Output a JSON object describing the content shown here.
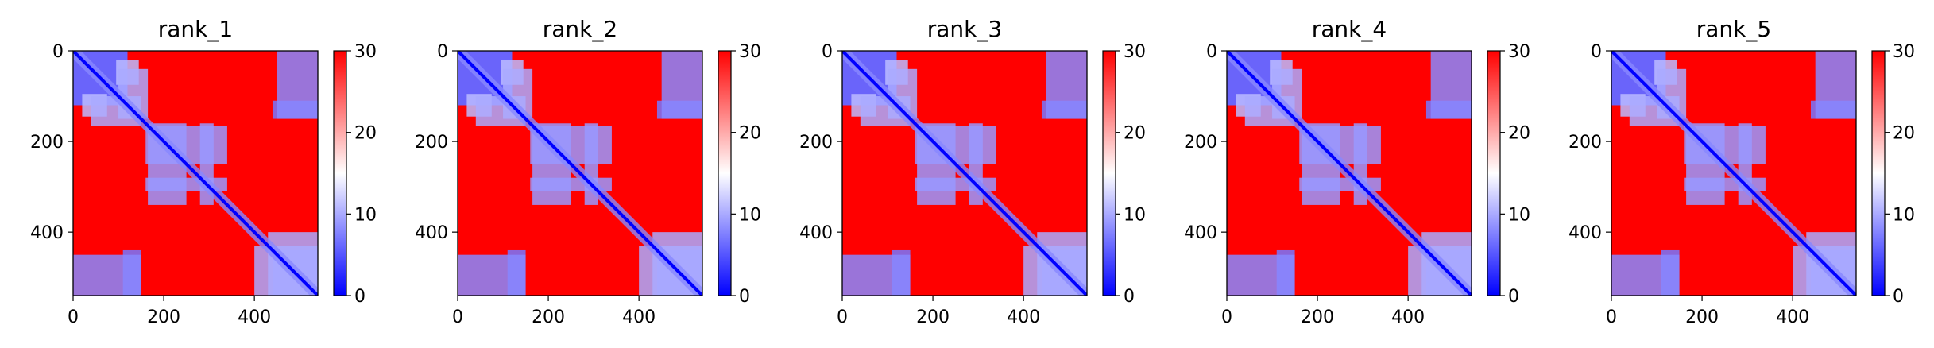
{
  "chart_data": [
    {
      "type": "heatmap",
      "title": "rank_1",
      "xlim": [
        0,
        540
      ],
      "ylim": [
        540,
        0
      ],
      "x_ticks": [
        0,
        200,
        400
      ],
      "y_ticks": [
        0,
        200,
        400
      ],
      "colorbar": {
        "min": 0,
        "max": 30,
        "ticks": [
          0,
          10,
          20,
          30
        ],
        "colormap": [
          "#0000ff",
          "#ffffff",
          "#ff0000"
        ]
      },
      "blocks": [
        {
          "x": [
            0,
            120
          ],
          "y": [
            0,
            120
          ],
          "v": 6
        },
        {
          "x": [
            20,
            75
          ],
          "y": [
            95,
            145
          ],
          "v": 11
        },
        {
          "x": [
            100,
            165
          ],
          "y": [
            40,
            150
          ],
          "v": 10
        },
        {
          "x": [
            440,
            540
          ],
          "y": [
            110,
            150
          ],
          "v": 7
        },
        {
          "x": [
            160,
            340
          ],
          "y": [
            165,
            250
          ],
          "v": 9
        },
        {
          "x": [
            160,
            340
          ],
          "y": [
            280,
            310
          ],
          "v": 9
        },
        {
          "x": [
            0,
            150
          ],
          "y": [
            450,
            540
          ],
          "v": 8
        },
        {
          "x": [
            440,
            540
          ],
          "y": [
            440,
            540
          ],
          "v": 4
        },
        {
          "x": [
            430,
            540
          ],
          "y": [
            400,
            540
          ],
          "v": 10
        }
      ]
    },
    {
      "type": "heatmap",
      "title": "rank_2",
      "xlim": [
        0,
        540
      ],
      "ylim": [
        540,
        0
      ],
      "x_ticks": [
        0,
        200,
        400
      ],
      "y_ticks": [
        0,
        200,
        400
      ],
      "colorbar": {
        "min": 0,
        "max": 30,
        "ticks": [
          0,
          10,
          20,
          30
        ],
        "colormap": [
          "#0000ff",
          "#ffffff",
          "#ff0000"
        ]
      },
      "blocks": [
        {
          "x": [
            0,
            120
          ],
          "y": [
            0,
            120
          ],
          "v": 6
        },
        {
          "x": [
            20,
            75
          ],
          "y": [
            95,
            145
          ],
          "v": 11
        },
        {
          "x": [
            100,
            165
          ],
          "y": [
            40,
            150
          ],
          "v": 10
        },
        {
          "x": [
            440,
            540
          ],
          "y": [
            110,
            150
          ],
          "v": 7
        },
        {
          "x": [
            160,
            340
          ],
          "y": [
            165,
            250
          ],
          "v": 9
        },
        {
          "x": [
            160,
            340
          ],
          "y": [
            280,
            310
          ],
          "v": 9
        },
        {
          "x": [
            0,
            150
          ],
          "y": [
            450,
            540
          ],
          "v": 8
        },
        {
          "x": [
            440,
            540
          ],
          "y": [
            440,
            540
          ],
          "v": 4
        },
        {
          "x": [
            430,
            540
          ],
          "y": [
            400,
            540
          ],
          "v": 10
        }
      ]
    },
    {
      "type": "heatmap",
      "title": "rank_3",
      "xlim": [
        0,
        540
      ],
      "ylim": [
        540,
        0
      ],
      "x_ticks": [
        0,
        200,
        400
      ],
      "y_ticks": [
        0,
        200,
        400
      ],
      "colorbar": {
        "min": 0,
        "max": 30,
        "ticks": [
          0,
          10,
          20,
          30
        ],
        "colormap": [
          "#0000ff",
          "#ffffff",
          "#ff0000"
        ]
      },
      "blocks": [
        {
          "x": [
            0,
            120
          ],
          "y": [
            0,
            120
          ],
          "v": 6
        },
        {
          "x": [
            20,
            75
          ],
          "y": [
            95,
            145
          ],
          "v": 11
        },
        {
          "x": [
            100,
            165
          ],
          "y": [
            40,
            150
          ],
          "v": 10
        },
        {
          "x": [
            440,
            540
          ],
          "y": [
            110,
            150
          ],
          "v": 7
        },
        {
          "x": [
            160,
            340
          ],
          "y": [
            165,
            250
          ],
          "v": 9
        },
        {
          "x": [
            160,
            340
          ],
          "y": [
            280,
            310
          ],
          "v": 9
        },
        {
          "x": [
            0,
            150
          ],
          "y": [
            450,
            540
          ],
          "v": 8
        },
        {
          "x": [
            440,
            540
          ],
          "y": [
            440,
            540
          ],
          "v": 4
        },
        {
          "x": [
            430,
            540
          ],
          "y": [
            400,
            540
          ],
          "v": 10
        }
      ]
    },
    {
      "type": "heatmap",
      "title": "rank_4",
      "xlim": [
        0,
        540
      ],
      "ylim": [
        540,
        0
      ],
      "x_ticks": [
        0,
        200,
        400
      ],
      "y_ticks": [
        0,
        200,
        400
      ],
      "colorbar": {
        "min": 0,
        "max": 30,
        "ticks": [
          0,
          10,
          20,
          30
        ],
        "colormap": [
          "#0000ff",
          "#ffffff",
          "#ff0000"
        ]
      },
      "blocks": [
        {
          "x": [
            0,
            120
          ],
          "y": [
            0,
            120
          ],
          "v": 6
        },
        {
          "x": [
            20,
            75
          ],
          "y": [
            95,
            145
          ],
          "v": 11
        },
        {
          "x": [
            100,
            165
          ],
          "y": [
            40,
            150
          ],
          "v": 10
        },
        {
          "x": [
            440,
            540
          ],
          "y": [
            110,
            150
          ],
          "v": 7
        },
        {
          "x": [
            160,
            340
          ],
          "y": [
            165,
            250
          ],
          "v": 9
        },
        {
          "x": [
            160,
            340
          ],
          "y": [
            280,
            310
          ],
          "v": 9
        },
        {
          "x": [
            0,
            150
          ],
          "y": [
            450,
            540
          ],
          "v": 8
        },
        {
          "x": [
            440,
            540
          ],
          "y": [
            440,
            540
          ],
          "v": 4
        },
        {
          "x": [
            430,
            540
          ],
          "y": [
            400,
            540
          ],
          "v": 10
        }
      ]
    },
    {
      "type": "heatmap",
      "title": "rank_5",
      "xlim": [
        0,
        540
      ],
      "ylim": [
        540,
        0
      ],
      "x_ticks": [
        0,
        200,
        400
      ],
      "y_ticks": [
        0,
        200,
        400
      ],
      "colorbar": {
        "min": 0,
        "max": 30,
        "ticks": [
          0,
          10,
          20,
          30
        ],
        "colormap": [
          "#0000ff",
          "#ffffff",
          "#ff0000"
        ]
      },
      "blocks": [
        {
          "x": [
            0,
            120
          ],
          "y": [
            0,
            120
          ],
          "v": 6
        },
        {
          "x": [
            20,
            75
          ],
          "y": [
            95,
            145
          ],
          "v": 11
        },
        {
          "x": [
            100,
            165
          ],
          "y": [
            40,
            150
          ],
          "v": 10
        },
        {
          "x": [
            440,
            540
          ],
          "y": [
            110,
            150
          ],
          "v": 7
        },
        {
          "x": [
            160,
            340
          ],
          "y": [
            165,
            250
          ],
          "v": 9
        },
        {
          "x": [
            160,
            340
          ],
          "y": [
            280,
            310
          ],
          "v": 9
        },
        {
          "x": [
            0,
            150
          ],
          "y": [
            450,
            540
          ],
          "v": 8
        },
        {
          "x": [
            440,
            540
          ],
          "y": [
            440,
            540
          ],
          "v": 4
        },
        {
          "x": [
            430,
            540
          ],
          "y": [
            400,
            540
          ],
          "v": 10
        }
      ]
    }
  ]
}
